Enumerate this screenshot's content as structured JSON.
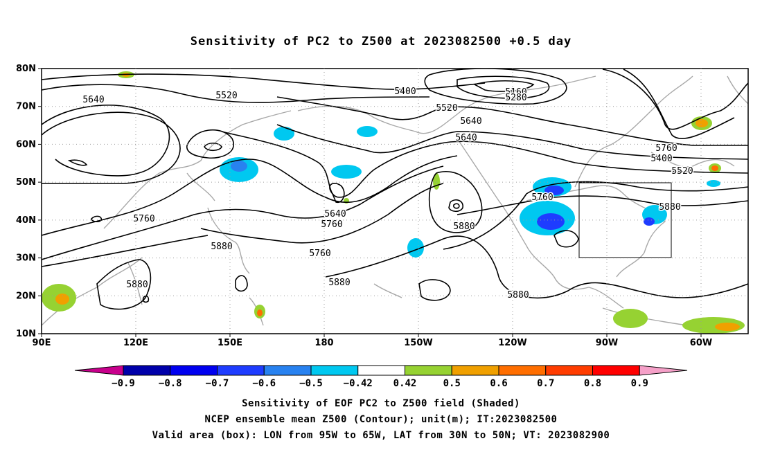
{
  "title": "Sensitivity of PC2 to Z500 at 2023082500 +0.5 day",
  "map": {
    "lat_labels": [
      "80N",
      "70N",
      "60N",
      "50N",
      "40N",
      "30N",
      "20N",
      "10N"
    ],
    "lon_labels": [
      "90E",
      "120E",
      "150E",
      "180",
      "150W",
      "120W",
      "90W",
      "60W"
    ],
    "contour_labels": [
      "5640",
      "5520",
      "5400",
      "5160",
      "5280",
      "5520",
      "5640",
      "5760",
      "5400",
      "5520",
      "5640",
      "5760",
      "5640",
      "5760",
      "5880",
      "5760",
      "5880",
      "5880",
      "5760",
      "5880",
      "5880",
      "5880"
    ],
    "box": {
      "label": "Valid area (box)",
      "lon": [
        "95W",
        "65W"
      ],
      "lat": [
        "30N",
        "50N"
      ]
    }
  },
  "colorbar": {
    "labels": [
      "-0.9",
      "-0.8",
      "-0.7",
      "-0.6",
      "-0.5",
      "-0.42",
      "0.42",
      "0.5",
      "0.6",
      "0.7",
      "0.8",
      "0.9"
    ],
    "colors": [
      "#c8008c",
      "#0000aa",
      "#0000f0",
      "#1e3cff",
      "#2882f0",
      "#00c8f0",
      "#ffffff",
      "#96d232",
      "#f0a000",
      "#ff6e00",
      "#ff3c00",
      "#ff0000",
      "#f5a0c8"
    ]
  },
  "footer": {
    "line1": "Sensitivity of EOF PC2 to Z500 field (Shaded)",
    "line2": "NCEP ensemble mean Z500 (Contour); unit(m); IT:2023082500",
    "line3": "Valid area (box): LON from 95W to 65W, LAT from 30N to 50N; VT: 2023082900"
  }
}
